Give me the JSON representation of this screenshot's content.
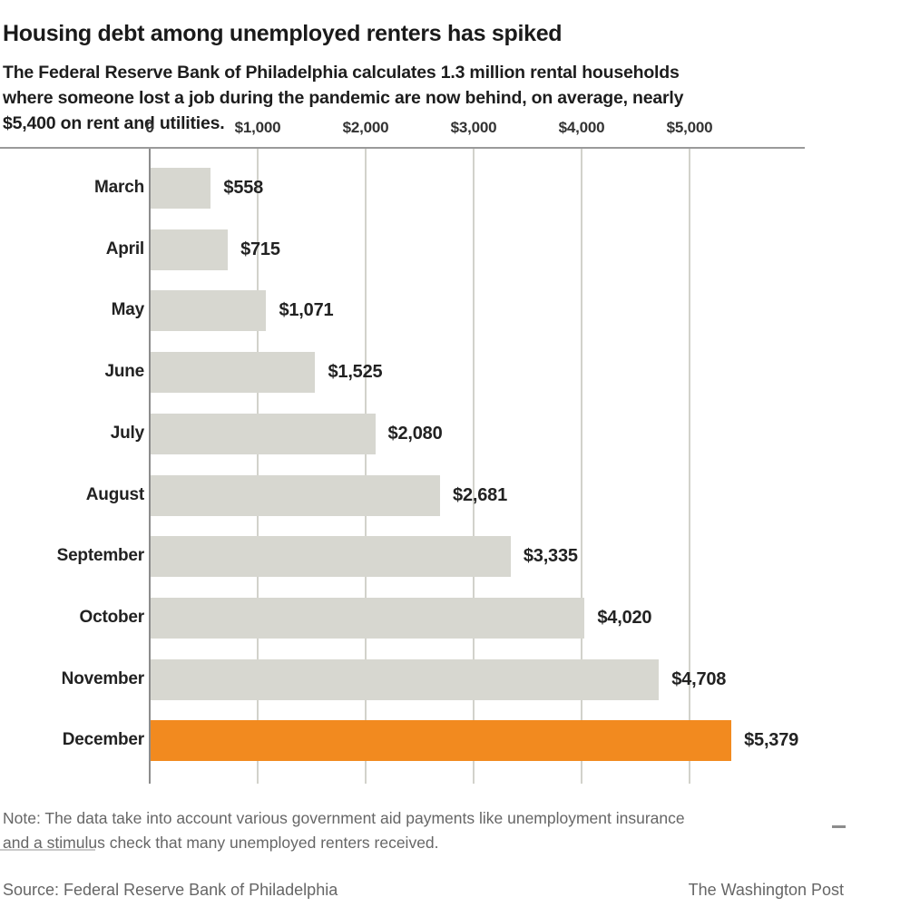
{
  "header": {
    "title": "Housing debt among unemployed renters has spiked",
    "subtitle": "The Federal Reserve Bank of Philadelphia calculates 1.3 million rental households\nwhere someone lost a job during the pandemic are now behind, on average, nearly\n$5,400 on rent and utilities."
  },
  "chart_data": {
    "type": "bar",
    "orientation": "horizontal",
    "title": "Housing debt among unemployed renters has spiked",
    "xlabel": "",
    "ylabel": "",
    "categories": [
      "March",
      "April",
      "May",
      "June",
      "July",
      "August",
      "September",
      "October",
      "November",
      "December"
    ],
    "values": [
      558,
      715,
      1071,
      1525,
      2080,
      2681,
      3335,
      4020,
      4708,
      5379
    ],
    "value_labels": [
      "$558",
      "$715",
      "$1,071",
      "$1,525",
      "$2,080",
      "$2,681",
      "$3,335",
      "$4,020",
      "$4,708",
      "$5,379"
    ],
    "highlight_index": 9,
    "x_axis": {
      "range": [
        0,
        6100
      ],
      "tick_values": [
        0,
        1000,
        2000,
        3000,
        4000,
        5000
      ],
      "tick_labels": [
        "0",
        "$1,000",
        "$2,000",
        "$3,000",
        "$4,000",
        "$5,000"
      ],
      "position": "top",
      "grid": true
    },
    "colors": {
      "bar": "#d7d7d0",
      "highlight": "#f28a1f",
      "gridline": "#d2d2cb",
      "axis_line": "#9a9a9a",
      "zero_line": "#8c8c8c",
      "value_text": "#222222"
    }
  },
  "footer": {
    "note": "Note: The data take into account various government aid payments like unemployment insurance\nand a stimulus check that many unemployed renters received.",
    "source": "Source: Federal Reserve Bank of Philadelphia",
    "credit": "The Washington Post"
  }
}
